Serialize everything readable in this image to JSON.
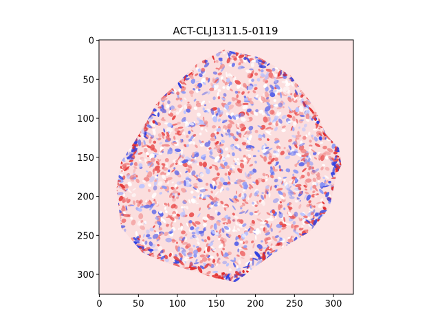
{
  "chart_data": {
    "type": "heatmap",
    "title": "ACT-CLJ1311.5-0119",
    "xlabel": "",
    "ylabel": "",
    "xlim": [
      -0.5,
      325.5
    ],
    "ylim": [
      325.5,
      -0.5
    ],
    "x_ticks": [
      0,
      50,
      100,
      150,
      200,
      250,
      300
    ],
    "y_ticks": [
      0,
      50,
      100,
      150,
      200,
      250,
      300
    ],
    "x_tick_labels": [
      "0",
      "50",
      "100",
      "150",
      "200",
      "250",
      "300"
    ],
    "y_tick_labels": [
      "0",
      "50",
      "100",
      "150",
      "200",
      "250",
      "300"
    ],
    "colormap": "bwr",
    "background_color": "#fde6e6",
    "footprint": [
      [
        160,
        12
      ],
      [
        205,
        22
      ],
      [
        245,
        45
      ],
      [
        275,
        85
      ],
      [
        290,
        120
      ],
      [
        307,
        138
      ],
      [
        310,
        160
      ],
      [
        303,
        175
      ],
      [
        295,
        215
      ],
      [
        270,
        245
      ],
      [
        225,
        272
      ],
      [
        200,
        290
      ],
      [
        175,
        310
      ],
      [
        150,
        305
      ],
      [
        120,
        296
      ],
      [
        85,
        285
      ],
      [
        55,
        272
      ],
      [
        28,
        240
      ],
      [
        22,
        190
      ],
      [
        28,
        155
      ],
      [
        45,
        130
      ],
      [
        60,
        105
      ],
      [
        75,
        78
      ],
      [
        100,
        55
      ],
      [
        125,
        30
      ]
    ],
    "grid": false
  }
}
